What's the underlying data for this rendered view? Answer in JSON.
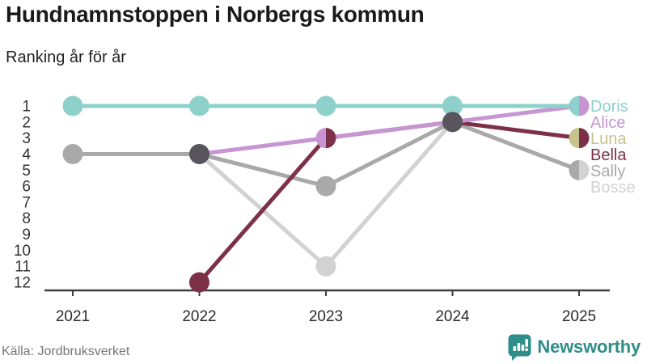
{
  "header": {
    "title": "Hundnamnstoppen i Norbergs kommun",
    "subtitle": "Ranking år för år"
  },
  "footer": {
    "source": "Källa: Jordbruksverket",
    "brand": "Newsworthy",
    "brand_color": "#2e8e89"
  },
  "chart_data": {
    "type": "line",
    "variant": "bump-ranking-chart",
    "title": "Hundnamnstoppen i Norbergs kommun",
    "subtitle": "Ranking år för år",
    "xlabel": "",
    "ylabel": "",
    "grid": false,
    "legend_position": "right",
    "categories": [
      "2021",
      "2022",
      "2023",
      "2024",
      "2025"
    ],
    "rank_ticks": [
      1,
      2,
      3,
      4,
      5,
      6,
      7,
      8,
      9,
      10,
      11,
      12
    ],
    "ylim": [
      12,
      1
    ],
    "series": [
      {
        "name": "Doris",
        "color": "#8ed1cb",
        "values": [
          1,
          1,
          1,
          1,
          1
        ]
      },
      {
        "name": "Alice",
        "color": "#c795d3",
        "values": [
          null,
          4,
          3,
          2,
          1
        ]
      },
      {
        "name": "Luna",
        "color": "#c8c28c",
        "values": [
          null,
          null,
          null,
          null,
          3
        ]
      },
      {
        "name": "Bella",
        "color": "#7d3148",
        "values": [
          null,
          12,
          3,
          2,
          3
        ]
      },
      {
        "name": "Sally",
        "color": "#a9a9a9",
        "values": [
          4,
          4,
          6,
          2,
          5
        ]
      },
      {
        "name": "Bosse",
        "color": "#d2d2d2",
        "values": [
          null,
          4,
          11,
          2,
          5
        ]
      }
    ],
    "draw_order": [
      "Bosse",
      "Sally",
      "Bella",
      "Alice",
      "Luna",
      "Doris"
    ],
    "tie_dot_color": "#58565c",
    "axis_color": "#3f3f3f"
  }
}
